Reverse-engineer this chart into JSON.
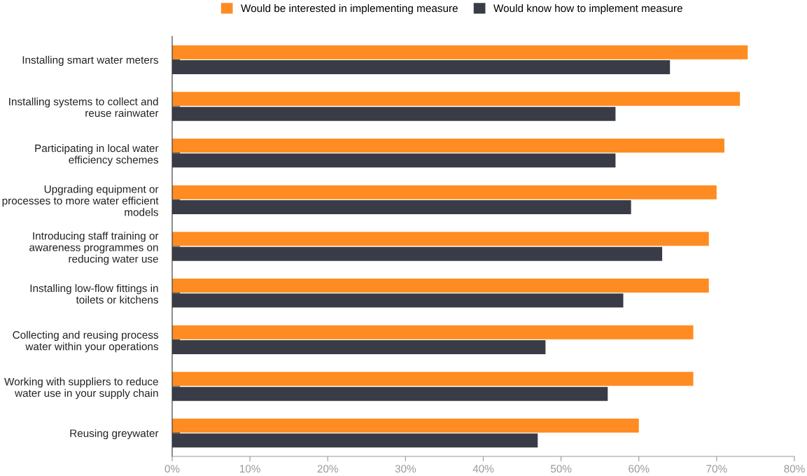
{
  "chart_data": {
    "type": "bar",
    "orientation": "horizontal",
    "categories": [
      "Installing smart water meters",
      "Installing systems to collect and\nreuse rainwater",
      "Participating in local water\nefficiency schemes",
      "Upgrading equipment or\nprocesses to more water efficient\nmodels",
      "Introducing staff training or\nawareness programmes on\nreducing water use",
      "Installing low-flow fittings in\ntoilets or kitchens",
      "Collecting and reusing process\nwater within your operations",
      "Working with suppliers to reduce\nwater use in your supply chain",
      "Reusing greywater"
    ],
    "series": [
      {
        "name": "Would be interested in implementing measure",
        "color": "#ff8c22",
        "values": [
          74,
          73,
          71,
          70,
          69,
          69,
          67,
          67,
          60
        ]
      },
      {
        "name": "Would know how to implement measure",
        "color": "#393c46",
        "values": [
          64,
          57,
          57,
          59,
          63,
          58,
          48,
          56,
          47
        ]
      }
    ],
    "xlim": [
      0,
      80
    ],
    "xticks": [
      {
        "value": 0,
        "label": "0%"
      },
      {
        "value": 10,
        "label": "10%"
      },
      {
        "value": 20,
        "label": "20%"
      },
      {
        "value": 30,
        "label": "30%"
      },
      {
        "value": 40,
        "label": "40%"
      },
      {
        "value": 50,
        "label": "50%"
      },
      {
        "value": 60,
        "label": "60%"
      },
      {
        "value": 70,
        "label": "70%"
      },
      {
        "value": 80,
        "label": "80%"
      }
    ],
    "grid": false,
    "legend": "top"
  }
}
